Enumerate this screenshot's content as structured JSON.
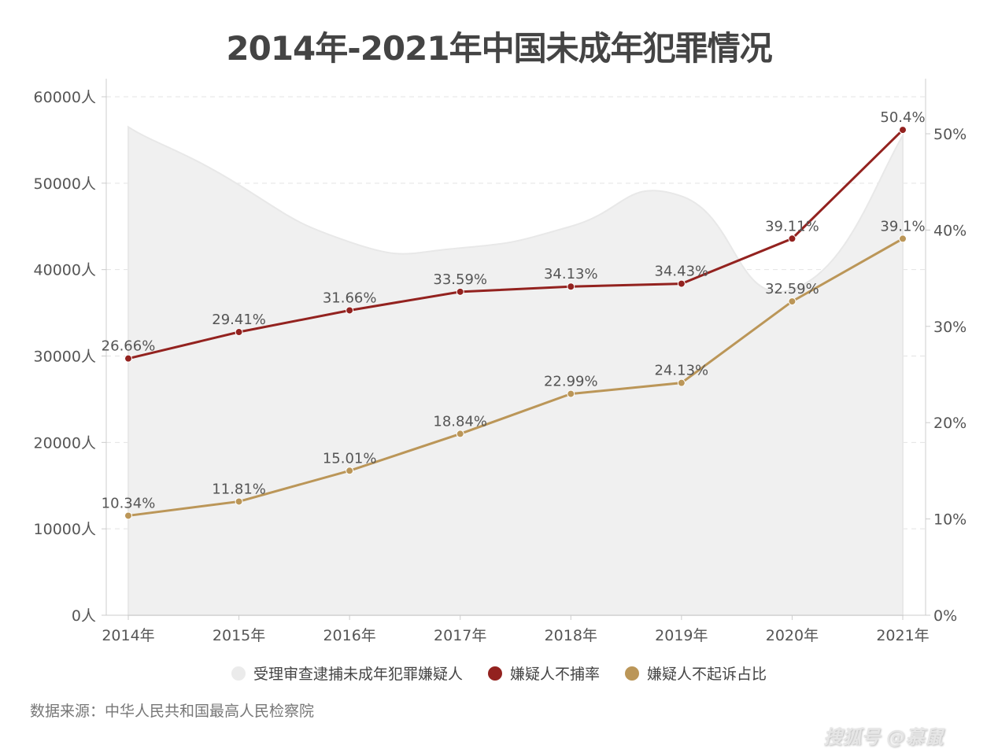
{
  "chart_data": {
    "type": "area+line",
    "title": "2014年-2021年中国未成年犯罪情况",
    "categories": [
      "2014年",
      "2015年",
      "2016年",
      "2017年",
      "2018年",
      "2019年",
      "2020年",
      "2021年"
    ],
    "left_axis": {
      "ylim": [
        0,
        60000
      ],
      "ticks": [
        "0人",
        "10000人",
        "20000人",
        "30000人",
        "40000人",
        "50000人",
        "60000人"
      ],
      "tick_values": [
        0,
        10000,
        20000,
        30000,
        40000,
        50000,
        60000
      ]
    },
    "right_axis": {
      "ylim": [
        0,
        55
      ],
      "ticks": [
        "0%",
        "10%",
        "20%",
        "30%",
        "40%",
        "50%"
      ],
      "tick_values": [
        0,
        10,
        20,
        30,
        40,
        50
      ]
    },
    "grid": true,
    "legend_position": "bottom",
    "series": [
      {
        "name": "受理审查逮捕未成年犯罪嫌疑人",
        "type": "area",
        "axis": "left",
        "color": "#f0f0f0",
        "legend_color": "#ebebeb",
        "values": [
          56500,
          49800,
          43200,
          42500,
          45000,
          48500,
          37700,
          55500
        ]
      },
      {
        "name": "嫌疑人不捕率",
        "type": "line",
        "axis": "right",
        "color": "#93221f",
        "values": [
          26.66,
          29.41,
          31.66,
          33.59,
          34.13,
          34.43,
          39.11,
          50.4
        ],
        "labels": [
          "26.66%",
          "29.41%",
          "31.66%",
          "33.59%",
          "34.13%",
          "34.43%",
          "39.11%",
          "50.4%"
        ]
      },
      {
        "name": "嫌疑人不起诉占比",
        "type": "line",
        "axis": "right",
        "color": "#bb9658",
        "values": [
          10.34,
          11.81,
          15.01,
          18.84,
          22.99,
          24.13,
          32.59,
          39.1
        ],
        "labels": [
          "10.34%",
          "11.81%",
          "15.01%",
          "18.84%",
          "22.99%",
          "24.13%",
          "32.59%",
          "39.1%"
        ]
      }
    ]
  },
  "source": "数据来源：中华人民共和国最高人民检察院",
  "watermark": "搜狐号 @慕鼠"
}
